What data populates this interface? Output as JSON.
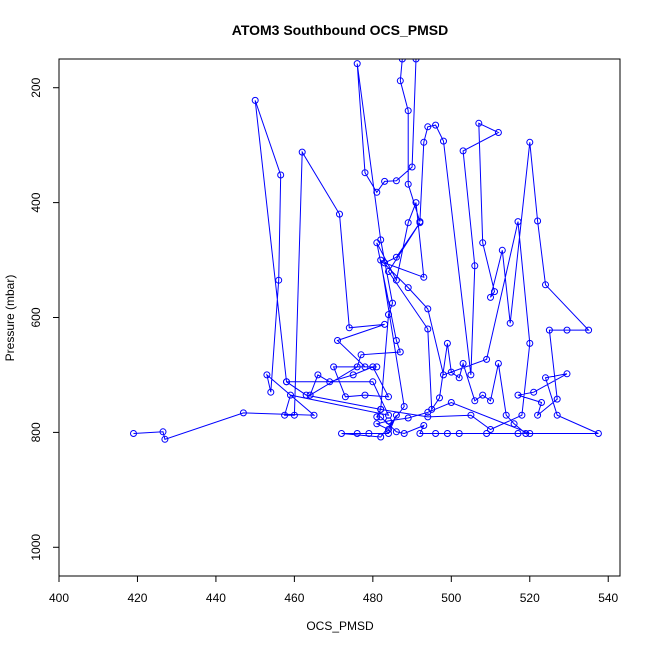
{
  "chart_data": {
    "type": "line",
    "title": "ATOM3 Southbound OCS_PMSD",
    "xlabel": "OCS_PMSD",
    "ylabel": "Pressure (mbar)",
    "xlim": [
      400,
      543
    ],
    "ylim": [
      1050,
      150
    ],
    "y_reversed": true,
    "xticks": [
      400,
      420,
      440,
      460,
      480,
      500,
      520,
      540
    ],
    "yticks": [
      200,
      400,
      600,
      800,
      1000
    ],
    "series_color": "#0000ff",
    "marker": "open-circle",
    "series": [
      {
        "points": [
          [
            419,
            802
          ],
          [
            426.5,
            799
          ],
          [
            427,
            812
          ],
          [
            447,
            766
          ],
          [
            465,
            770
          ],
          [
            453,
            700
          ],
          [
            454,
            730
          ],
          [
            456,
            535
          ],
          [
            456.5,
            352
          ],
          [
            450,
            222
          ],
          [
            458,
            712
          ],
          [
            480,
            712
          ],
          [
            484,
            770
          ],
          [
            459,
            735
          ],
          [
            457.5,
            770
          ],
          [
            460,
            770
          ],
          [
            462,
            312
          ],
          [
            471.5,
            420
          ],
          [
            474,
            618
          ],
          [
            483,
            612
          ],
          [
            471,
            640
          ],
          [
            478,
            686
          ],
          [
            481,
            686
          ],
          [
            470,
            686
          ],
          [
            473,
            738
          ],
          [
            478,
            735
          ],
          [
            484,
            738
          ],
          [
            480,
            686
          ],
          [
            475,
            700
          ],
          [
            469,
            712
          ],
          [
            466,
            700
          ],
          [
            464,
            735
          ],
          [
            476,
            686
          ],
          [
            477,
            665
          ],
          [
            487,
            660
          ],
          [
            486,
            640
          ],
          [
            481,
            470
          ],
          [
            486,
            535
          ],
          [
            489,
            435
          ],
          [
            491,
            400
          ],
          [
            493,
            530
          ],
          [
            483,
            505
          ],
          [
            486,
            495
          ],
          [
            492,
            435
          ],
          [
            484,
            520
          ],
          [
            494,
            620
          ],
          [
            495,
            760
          ],
          [
            497,
            740
          ],
          [
            499,
            645
          ],
          [
            500,
            695
          ],
          [
            502,
            705
          ],
          [
            503,
            680
          ],
          [
            506,
            745
          ],
          [
            508,
            735
          ],
          [
            510,
            745
          ],
          [
            512,
            680
          ],
          [
            514,
            770
          ],
          [
            516,
            785
          ],
          [
            519,
            802
          ],
          [
            537.5,
            802
          ],
          [
            527,
            770
          ],
          [
            524,
            705
          ],
          [
            529.5,
            698
          ],
          [
            521,
            730
          ],
          [
            517,
            735
          ],
          [
            523,
            748
          ],
          [
            522,
            770
          ],
          [
            527,
            742
          ],
          [
            525,
            622
          ],
          [
            529.5,
            622
          ],
          [
            535,
            622
          ],
          [
            524,
            543
          ],
          [
            522,
            432
          ],
          [
            520,
            295
          ],
          [
            515,
            610
          ],
          [
            513,
            483
          ],
          [
            510,
            565
          ],
          [
            511,
            555
          ],
          [
            508,
            470
          ],
          [
            507,
            262
          ],
          [
            512,
            278
          ],
          [
            503,
            310
          ],
          [
            506,
            510
          ],
          [
            505,
            700
          ],
          [
            498,
            293
          ],
          [
            496,
            265
          ],
          [
            494,
            268
          ],
          [
            493,
            295
          ],
          [
            492,
            433
          ],
          [
            489,
            368
          ],
          [
            489,
            240
          ],
          [
            487,
            188
          ],
          [
            487.5,
            150
          ],
          [
            491,
            150
          ],
          [
            490,
            338
          ],
          [
            486,
            362
          ],
          [
            483,
            363
          ],
          [
            481,
            382
          ],
          [
            478,
            348
          ],
          [
            476,
            158
          ],
          [
            482,
            465
          ],
          [
            485,
            575
          ],
          [
            484,
            595
          ],
          [
            482,
            760
          ],
          [
            481,
            773
          ],
          [
            482,
            773
          ],
          [
            486,
            799
          ],
          [
            488,
            802
          ],
          [
            493,
            788
          ],
          [
            492,
            802
          ],
          [
            496,
            802
          ],
          [
            499,
            802
          ],
          [
            502,
            802
          ],
          [
            509,
            802
          ],
          [
            517,
            802
          ],
          [
            520,
            802
          ],
          [
            500,
            748
          ],
          [
            494,
            765
          ],
          [
            489,
            775
          ],
          [
            484,
            780
          ],
          [
            481,
            785
          ],
          [
            484,
            795
          ],
          [
            486,
            770
          ],
          [
            484,
            802
          ],
          [
            479,
            802
          ],
          [
            476,
            802
          ],
          [
            472,
            802
          ],
          [
            482,
            808
          ],
          [
            488,
            755
          ],
          [
            482,
            500
          ],
          [
            489,
            548
          ],
          [
            494,
            585
          ],
          [
            498,
            700
          ],
          [
            509,
            673
          ],
          [
            517,
            433
          ],
          [
            520,
            645
          ],
          [
            518,
            770
          ],
          [
            510,
            795
          ],
          [
            505,
            770
          ],
          [
            494,
            773
          ],
          [
            482,
            760
          ],
          [
            463,
            735
          ],
          [
            458,
            712
          ]
        ]
      }
    ]
  }
}
